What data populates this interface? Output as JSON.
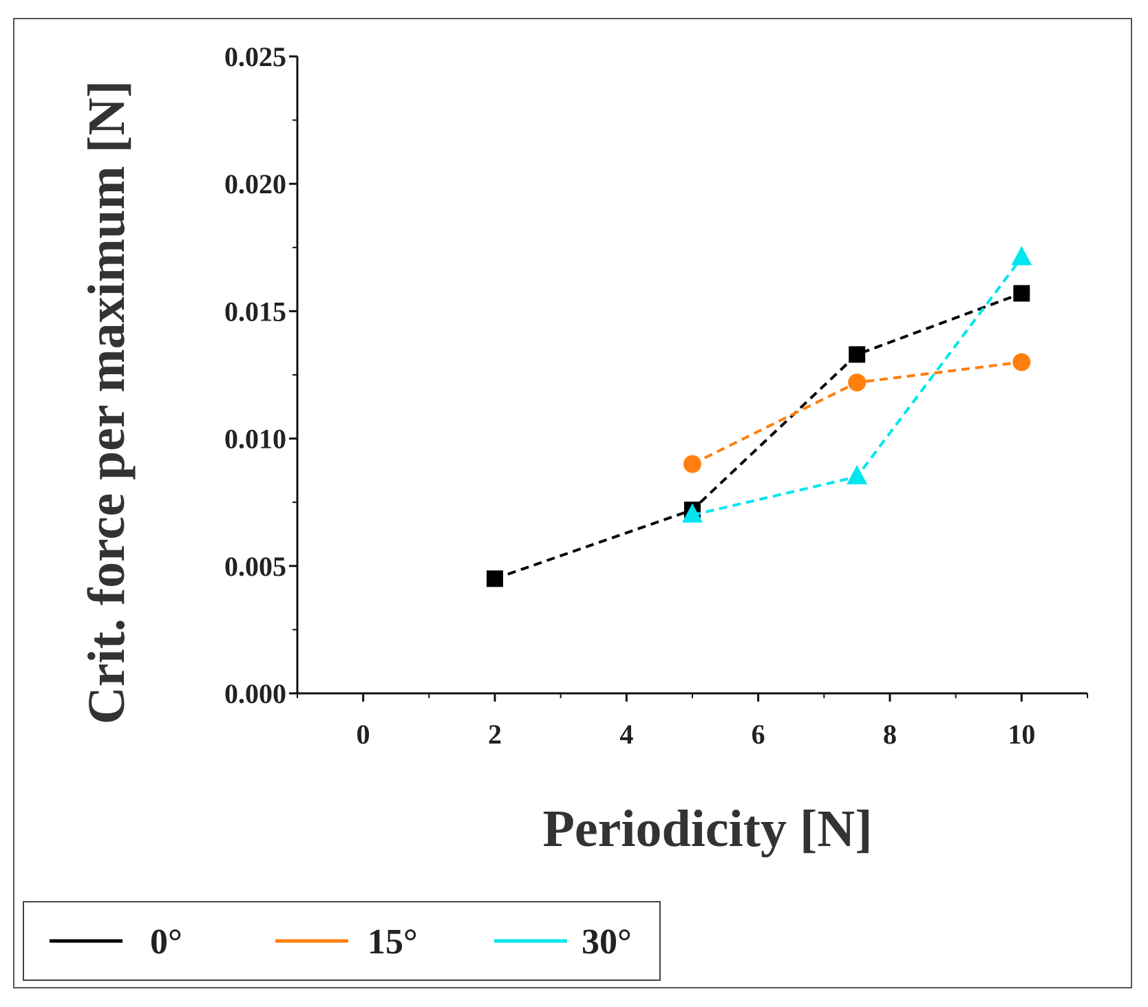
{
  "chart_data": {
    "type": "line",
    "title": "",
    "xlabel": "Periodicity [N]",
    "ylabel": "Crit. force per maximum [N]",
    "xlim": [
      -1,
      11
    ],
    "ylim": [
      0,
      0.025
    ],
    "x_ticks": [
      "0",
      "2",
      "4",
      "6",
      "8",
      "10"
    ],
    "x_tick_values": [
      0,
      2,
      4,
      6,
      8,
      10
    ],
    "y_ticks": [
      "0.000",
      "0.005",
      "0.010",
      "0.015",
      "0.020",
      "0.025"
    ],
    "y_tick_values": [
      0,
      0.005,
      0.01,
      0.015,
      0.02,
      0.025
    ],
    "grid": false,
    "legend_position": "bottom-left",
    "series": [
      {
        "name": "0°",
        "color": "#000000",
        "marker": "square",
        "line_style": "dashed",
        "x": [
          2,
          5,
          7.5,
          10
        ],
        "y": [
          0.0045,
          0.0072,
          0.0133,
          0.0157
        ]
      },
      {
        "name": "15°",
        "color": "#ff7f0e",
        "marker": "circle",
        "line_style": "dashed",
        "x": [
          5,
          7.5,
          10
        ],
        "y": [
          0.009,
          0.0122,
          0.013
        ]
      },
      {
        "name": "30°",
        "color": "#00e5ee",
        "marker": "triangle",
        "line_style": "dashed",
        "x": [
          5,
          7.5,
          10
        ],
        "y": [
          0.007,
          0.0085,
          0.0171
        ]
      }
    ]
  }
}
